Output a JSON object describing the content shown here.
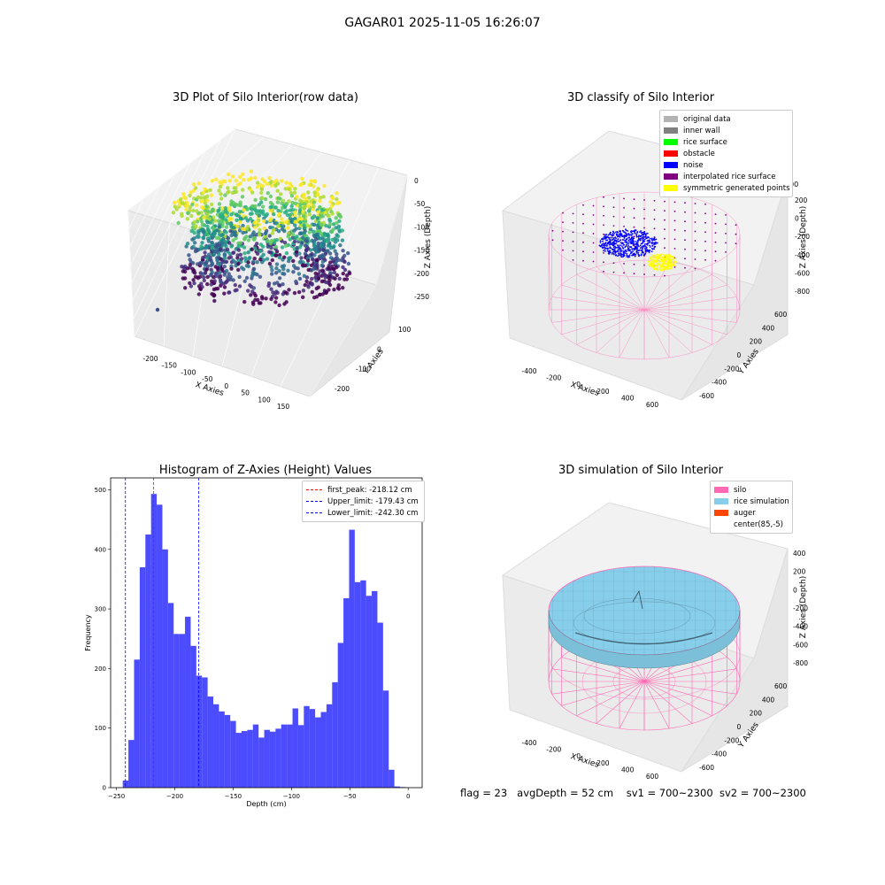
{
  "suptitle": "GAGAR01 2025-11-05 16:26:07",
  "panels": {
    "raw": {
      "title": "3D Plot of Silo Interior(row data)",
      "xlabel": "X Axies",
      "ylabel": "Y Axies",
      "zlabel": "Z Axies (Depth)",
      "xticks": [
        "-200",
        "-150",
        "-100",
        "-50",
        "0",
        "50",
        "100",
        "150"
      ],
      "yticks": [
        "100",
        "0",
        "-100",
        "-200"
      ],
      "zticks": [
        "0",
        "-50",
        "-100",
        "-150",
        "-200",
        "-250"
      ]
    },
    "classify": {
      "title": "3D classify of Silo Interior",
      "xlabel": "X Axies",
      "ylabel": "Y Axies",
      "zlabel": "Z Axies (Depth)",
      "xticks": [
        "-400",
        "-200",
        "0",
        "200",
        "400",
        "600"
      ],
      "yticks": [
        "600",
        "400",
        "200",
        "0",
        "-200",
        "-400",
        "-600"
      ],
      "zticks": [
        "200",
        "0",
        "-200",
        "-400",
        "-600",
        "-800"
      ],
      "zticks_partial": [
        "00"
      ],
      "legend": [
        {
          "label": "original data",
          "color": "#b3b3b3"
        },
        {
          "label": "inner wall",
          "color": "#808080"
        },
        {
          "label": "rice surface",
          "color": "#00ff00"
        },
        {
          "label": "obstacle",
          "color": "#ff0000"
        },
        {
          "label": "noise",
          "color": "#0000ff"
        },
        {
          "label": "interpolated rice surface",
          "color": "#800080"
        },
        {
          "label": "symmetric generated points",
          "color": "#ffff00"
        }
      ]
    },
    "simulation": {
      "title": "3D simulation of Silo Interior",
      "xlabel": "X Axies",
      "ylabel": "Y Axies",
      "zlabel": "Z Axies (Depth)",
      "xticks": [
        "-400",
        "-200",
        "0",
        "200",
        "400",
        "600"
      ],
      "yticks": [
        "600",
        "400",
        "200",
        "0",
        "-200",
        "-400",
        "-600"
      ],
      "zticks": [
        "400",
        "200",
        "0",
        "-200",
        "-400",
        "-600",
        "-800"
      ],
      "legend": [
        {
          "label": "silo",
          "color": "#ff69b4"
        },
        {
          "label": "rice simulation",
          "color": "#87ceeb"
        },
        {
          "label": "auger",
          "color": "#ff4500"
        },
        {
          "label": "center(85,-5)",
          "color": "#ffffff"
        }
      ]
    }
  },
  "footer": {
    "flag": "flag = 23",
    "avg": "avgDepth = 52 cm",
    "sv1": "sv1 = 700~2300",
    "sv2": "sv2 = 700~2300"
  },
  "chart_data": [
    {
      "type": "scatter",
      "title": "3D Plot of Silo Interior(row data)",
      "xlabel": "X Axies",
      "ylabel": "Y Axies",
      "zlabel": "Z Axies (Depth)",
      "xlim": [
        -230,
        180
      ],
      "ylim": [
        -230,
        170
      ],
      "zlim": [
        -270,
        5
      ],
      "colormap": "viridis"
    },
    {
      "type": "scatter",
      "title": "3D classify of Silo Interior",
      "xlabel": "X Axies",
      "ylabel": "Y Axies",
      "zlabel": "Z Axies (Depth)",
      "series": [
        "original data",
        "inner wall",
        "rice surface",
        "obstacle",
        "noise",
        "interpolated rice surface",
        "symmetric generated points"
      ],
      "legend_position": "top-right"
    },
    {
      "type": "bar",
      "title": "Histogram of Z-Axies (Height) Values",
      "xlabel": "Depth (cm)",
      "ylabel": "Frequency",
      "xlim": [
        -255,
        12
      ],
      "ylim": [
        0,
        520
      ],
      "xticks": [
        -250,
        -200,
        -150,
        -100,
        -50,
        0
      ],
      "yticks": [
        0,
        100,
        200,
        300,
        400,
        500
      ],
      "bin_start": -244.6,
      "bin_width": 4.85,
      "values": [
        12,
        80,
        215,
        370,
        425,
        493,
        475,
        400,
        310,
        258,
        258,
        287,
        238,
        188,
        185,
        153,
        140,
        128,
        122,
        112,
        92,
        95,
        97,
        106,
        84,
        97,
        94,
        99,
        106,
        106,
        133,
        105,
        137,
        132,
        118,
        127,
        140,
        177,
        243,
        318,
        433,
        345,
        348,
        322,
        330,
        277,
        163,
        30,
        2,
        1
      ],
      "color": "#0000ff",
      "vlines": [
        {
          "label": "first_peak: -218.12 cm",
          "x": -218.12,
          "color": "#ff0000"
        },
        {
          "label": "Upper_limit: -179.43 cm",
          "x": -179.43,
          "color": "#0000ff"
        },
        {
          "label": "Lower_limit: -242.30 cm",
          "x": -242.3,
          "color": "#0000ff"
        }
      ],
      "legend_position": "top-right"
    },
    {
      "type": "scatter",
      "title": "3D simulation of Silo Interior",
      "xlabel": "X Axies",
      "ylabel": "Y Axies",
      "zlabel": "Z Axies (Depth)",
      "series": [
        "silo",
        "rice simulation",
        "auger",
        "center(85,-5)"
      ],
      "legend_position": "top-right"
    }
  ]
}
